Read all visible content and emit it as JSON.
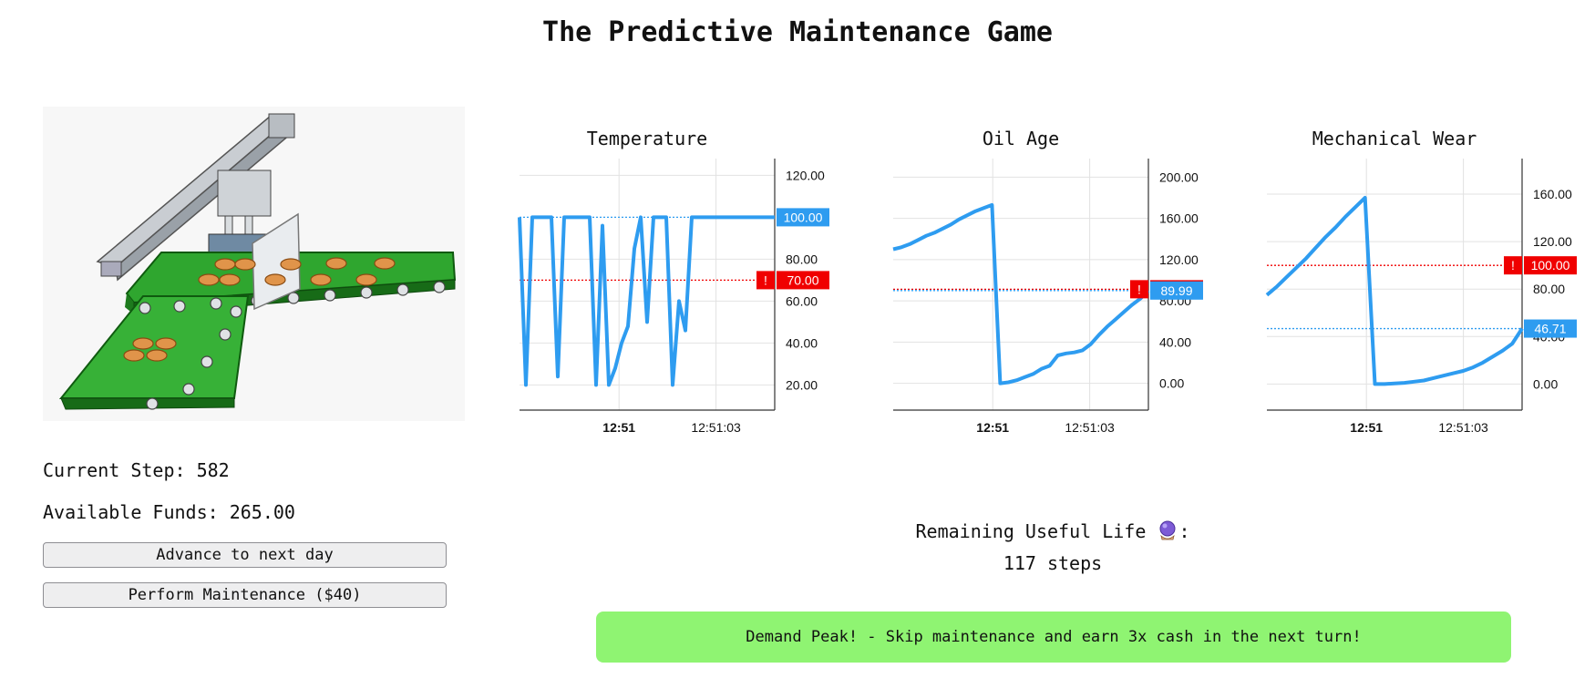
{
  "game": {
    "title": "The Predictive Maintenance Game",
    "current_step_label": "Current Step:",
    "current_step": "582",
    "funds_label": "Available Funds:",
    "funds": "265.00",
    "advance_label": "Advance to next day",
    "maintenance_label": "Perform Maintenance ($40)",
    "rul_label": "Remaining Useful Life",
    "rul_icon": "crystal-ball-icon",
    "rul_value": "117 steps",
    "banner": "Demand Peak! - Skip maintenance and earn 3x cash in the next turn!",
    "colors": {
      "series": "#2e9cf0",
      "threshold": "#f00000",
      "banner": "#8ff472"
    }
  },
  "chart_data": [
    {
      "type": "line",
      "title": "Temperature",
      "xticks": [
        "12:51",
        "12:51:03"
      ],
      "yticks": [
        "20.00",
        "40.00",
        "60.00",
        "80.00",
        "120.00"
      ],
      "ylim": [
        8,
        128
      ],
      "current_value": "100.00",
      "threshold_label": "!",
      "threshold_value": "70.00",
      "current": 100,
      "threshold": 70,
      "values": [
        100,
        20,
        100,
        100,
        100,
        100,
        24,
        100,
        100,
        100,
        100,
        100,
        20,
        96,
        20,
        28,
        40,
        48,
        85,
        100,
        50,
        100,
        100,
        100,
        20,
        60,
        46,
        100,
        100,
        100,
        100,
        100,
        100,
        100,
        100,
        100,
        100,
        100,
        100,
        100,
        100
      ]
    },
    {
      "type": "line",
      "title": "Oil Age",
      "xticks": [
        "12:51",
        "12:51:03"
      ],
      "yticks": [
        "0.00",
        "40.00",
        "80.00",
        "120.00",
        "160.00",
        "200.00"
      ],
      "ylim": [
        -26,
        218
      ],
      "current_value": "89.99",
      "threshold_label": "!",
      "threshold_value": "91.25",
      "current": 89.99,
      "threshold": 91.25,
      "values": [
        130,
        132,
        135,
        139,
        143,
        146,
        150,
        154,
        159,
        163,
        167,
        170,
        173,
        0,
        1,
        3,
        6,
        9,
        14,
        17,
        27,
        29,
        30,
        32,
        38,
        47,
        55,
        62,
        69,
        76,
        82,
        90
      ]
    },
    {
      "type": "line",
      "title": "Mechanical Wear",
      "xticks": [
        "12:51",
        "12:51:03"
      ],
      "yticks": [
        "0.00",
        "40.00",
        "80.00",
        "120.00",
        "160.00"
      ],
      "ylim": [
        -22,
        190
      ],
      "current_value": "46.71",
      "threshold_label": "!",
      "threshold_value": "100.00",
      "current": 46.71,
      "threshold": 100,
      "values": [
        75,
        82,
        90,
        98,
        106,
        115,
        124,
        132,
        141,
        149,
        157,
        0,
        0,
        0.5,
        1,
        2,
        3,
        5,
        7,
        9,
        11,
        14,
        18,
        23,
        28,
        34,
        46.71
      ]
    }
  ]
}
